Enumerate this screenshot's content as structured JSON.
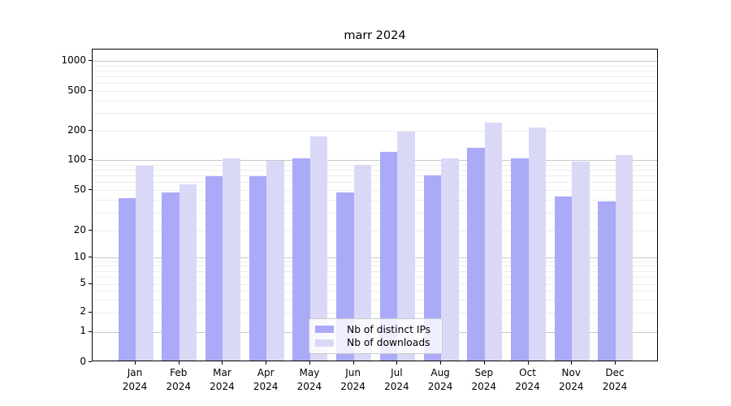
{
  "chart_data": {
    "type": "bar",
    "title": "marr 2024",
    "categories": [
      "Jan",
      "Feb",
      "Mar",
      "Apr",
      "May",
      "Jun",
      "Jul",
      "Aug",
      "Sep",
      "Oct",
      "Nov",
      "Dec"
    ],
    "year_label": "2024",
    "series": [
      {
        "name": "Nb of distinct IPs",
        "color": "#aaaaf8",
        "values": [
          40,
          46,
          66,
          66,
          100,
          46,
          116,
          68,
          129,
          100,
          42,
          37
        ]
      },
      {
        "name": "Nb of downloads",
        "color": "#d9d9f7",
        "values": [
          84,
          55,
          100,
          94,
          168,
          86,
          188,
          100,
          232,
          206,
          92,
          108
        ]
      }
    ],
    "yscale": "symlog",
    "yticks": [
      0,
      1,
      2,
      5,
      10,
      20,
      50,
      100,
      200,
      500,
      1000
    ],
    "ylim": [
      0,
      1300
    ],
    "grid": true,
    "legend_position": "lower center",
    "colors": {
      "grid_major": "#c8c8c8",
      "grid_minor": "#ededed",
      "axis": "#000000",
      "text": "#000000"
    }
  }
}
